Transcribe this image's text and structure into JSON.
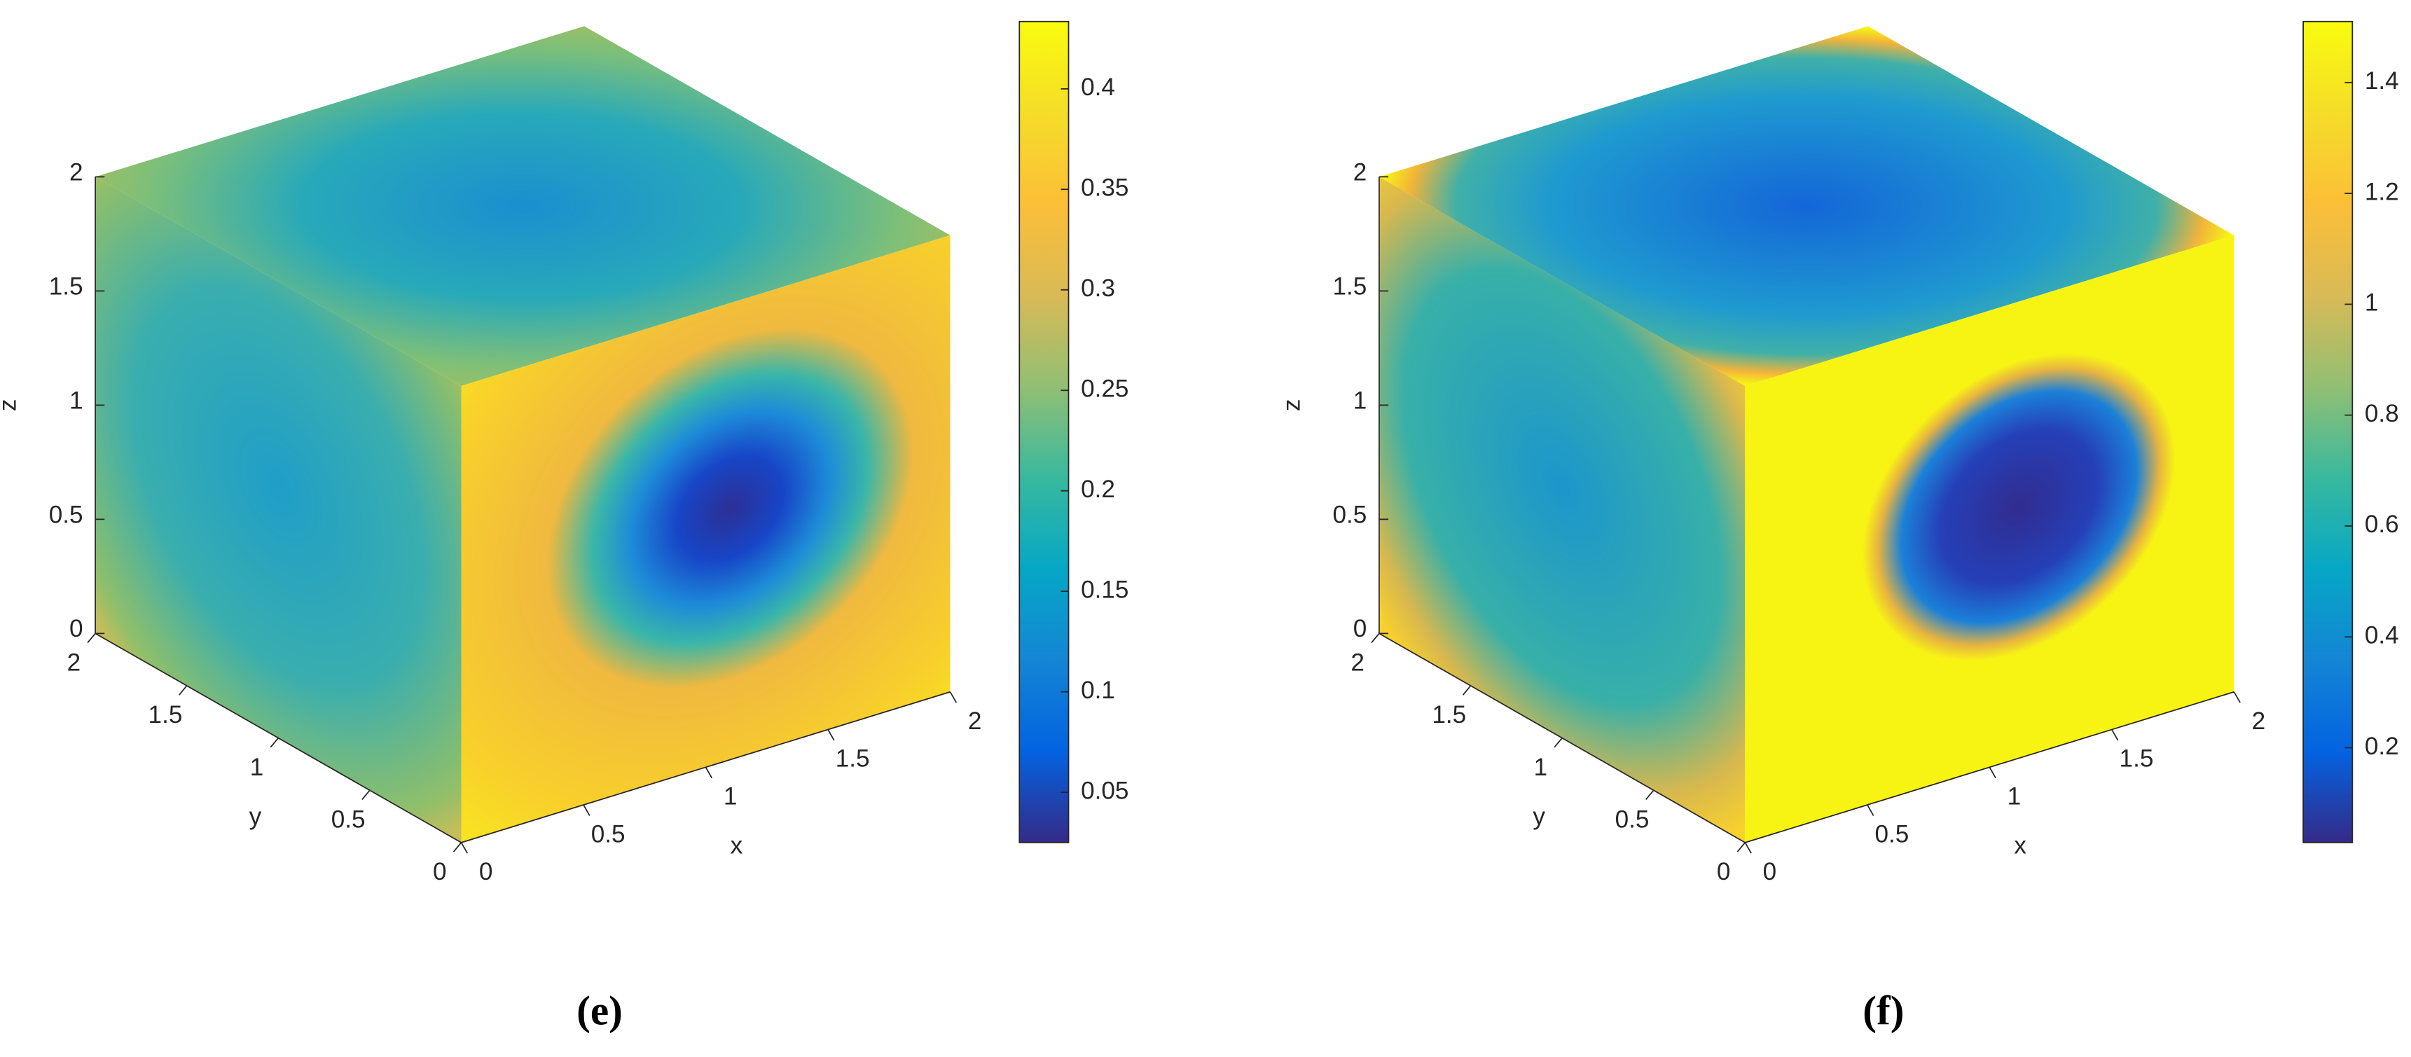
{
  "chart_data": [
    {
      "type": "surface3d",
      "caption": "(e)",
      "xlabel": "x",
      "ylabel": "y",
      "zlabel": "z",
      "xlim": [
        0,
        2
      ],
      "ylim": [
        0,
        2
      ],
      "zlim": [
        0,
        2
      ],
      "xticks": [
        0,
        0.5,
        1,
        1.5,
        2
      ],
      "yticks": [
        0,
        0.5,
        1,
        1.5,
        2
      ],
      "zticks": [
        0,
        0.5,
        1,
        1.5,
        2
      ],
      "clim": [
        0.025,
        0.4335
      ],
      "cticks": [
        0.05,
        0.1,
        0.15,
        0.2,
        0.25,
        0.3,
        0.35,
        0.4
      ],
      "colormap_colors": [
        "#352a87",
        "#0363e1",
        "#1485d4",
        "#06a7c6",
        "#38b99e",
        "#92bf73",
        "#d9ba56",
        "#fcbf38",
        "#f5dd28",
        "#f9fb0e"
      ]
    },
    {
      "type": "surface3d",
      "caption": "(f)",
      "xlabel": "x",
      "ylabel": "y",
      "zlabel": "z",
      "xlim": [
        0,
        2
      ],
      "ylim": [
        0,
        2
      ],
      "zlim": [
        0,
        2
      ],
      "xticks": [
        0,
        0.5,
        1,
        1.5,
        2
      ],
      "yticks": [
        0,
        0.5,
        1,
        1.5,
        2
      ],
      "zticks": [
        0,
        0.5,
        1,
        1.5,
        2
      ],
      "clim": [
        0.029,
        1.51
      ],
      "cticks": [
        0.2,
        0.4,
        0.6,
        0.8,
        1,
        1.2,
        1.4
      ],
      "colormap_colors": [
        "#352a87",
        "#0363e1",
        "#1485d4",
        "#06a7c6",
        "#38b99e",
        "#92bf73",
        "#d9ba56",
        "#fcbf38",
        "#f5dd28",
        "#f9fb0e"
      ]
    }
  ]
}
